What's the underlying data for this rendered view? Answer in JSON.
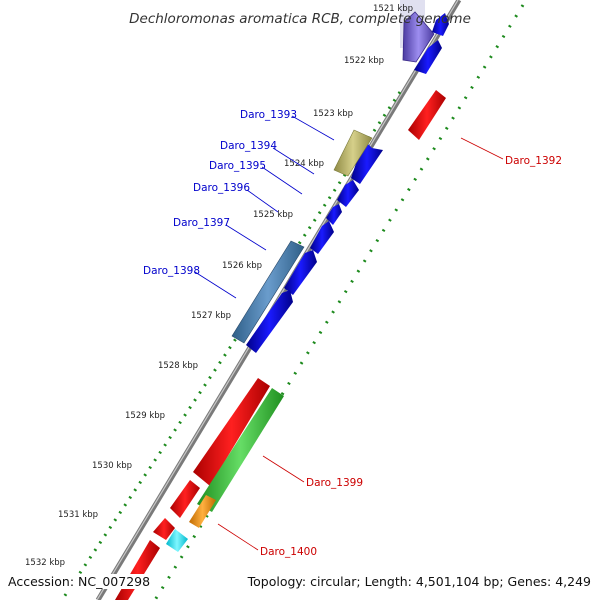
{
  "title": "Dechloromonas aromatica RCB, complete genome",
  "footer": {
    "accession": "Accession: NC_007298",
    "topology": "Topology: circular; Length: 4,501,104 bp; Genes: 4,249"
  },
  "ticks": [
    "1521 kbp",
    "1522 kbp",
    "1523 kbp",
    "1524 kbp",
    "1525 kbp",
    "1526 kbp",
    "1527 kbp",
    "1528 kbp",
    "1529 kbp",
    "1530 kbp",
    "1531 kbp",
    "1532 kbp"
  ],
  "gene_labels": {
    "forward": [
      "Daro_1393",
      "Daro_1394",
      "Daro_1395",
      "Daro_1396",
      "Daro_1397",
      "Daro_1398"
    ],
    "reverse": [
      "Daro_1392",
      "Daro_1399",
      "Daro_1400"
    ]
  },
  "colors": {
    "forward_label": "#0000cc",
    "reverse_label": "#cc0000",
    "cds_blue": "#0a0ae6",
    "cds_red": "#ee0000",
    "cds_green": "#33bb33",
    "backbone": "#888888",
    "gc_dots": "#1d8a1d"
  }
}
